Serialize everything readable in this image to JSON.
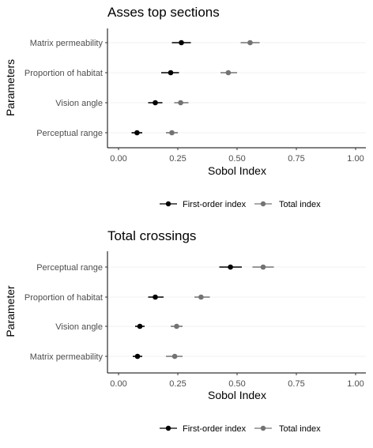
{
  "chart_data": [
    {
      "type": "scatter",
      "title": "Asses top sections",
      "xlabel": "Sobol Index",
      "ylabel": "Parameters",
      "xlim": [
        0,
        1
      ],
      "xticks": [
        0,
        0.25,
        0.5,
        0.75,
        1
      ],
      "xtick_labels": [
        "0.00",
        "0.25",
        "0.50",
        "0.75",
        "1.00"
      ],
      "categories": [
        "Matrix permeability",
        "Proportion of habitat",
        "Vision angle",
        "Perceptual range"
      ],
      "grid": "horizontal-major",
      "legend_position": "bottom",
      "series": [
        {
          "name": "First-order index",
          "color": "#000000",
          "values": [
            0.265,
            0.22,
            0.155,
            0.078
          ],
          "error_low": [
            0.225,
            0.18,
            0.125,
            0.055
          ],
          "error_high": [
            0.305,
            0.255,
            0.185,
            0.1
          ]
        },
        {
          "name": "Total index",
          "color": "#737373",
          "values": [
            0.555,
            0.463,
            0.262,
            0.225
          ],
          "error_low": [
            0.515,
            0.43,
            0.235,
            0.2
          ],
          "error_high": [
            0.595,
            0.5,
            0.295,
            0.25
          ]
        }
      ]
    },
    {
      "type": "scatter",
      "title": "Total crossings",
      "xlabel": "Sobol Index",
      "ylabel": "Parameter",
      "xlim": [
        0,
        1
      ],
      "xticks": [
        0,
        0.25,
        0.5,
        0.75,
        1
      ],
      "xtick_labels": [
        "0.00",
        "0.25",
        "0.50",
        "0.75",
        "1.00"
      ],
      "categories": [
        "Perceptual range",
        "Proportion of habitat",
        "Vision angle",
        "Matrix permeability"
      ],
      "grid": "horizontal-major",
      "legend_position": "bottom",
      "series": [
        {
          "name": "First-order index",
          "color": "#000000",
          "values": [
            0.472,
            0.155,
            0.09,
            0.08
          ],
          "error_low": [
            0.425,
            0.125,
            0.07,
            0.06
          ],
          "error_high": [
            0.52,
            0.19,
            0.11,
            0.1
          ]
        },
        {
          "name": "Total index",
          "color": "#737373",
          "values": [
            0.61,
            0.348,
            0.245,
            0.237
          ],
          "error_low": [
            0.565,
            0.32,
            0.22,
            0.2
          ],
          "error_high": [
            0.655,
            0.385,
            0.27,
            0.27
          ]
        }
      ]
    }
  ]
}
